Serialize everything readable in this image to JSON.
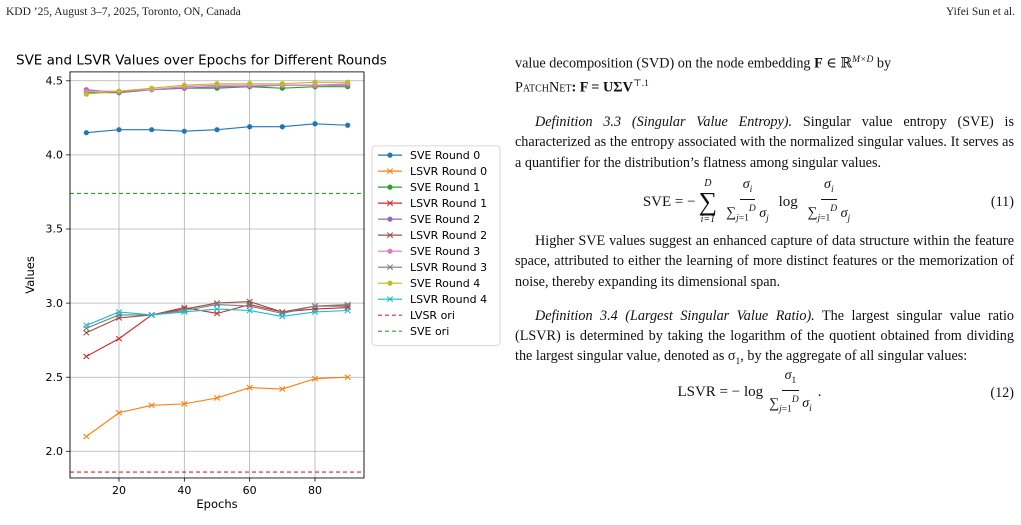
{
  "header": {
    "left": "KDD ’25, August 3–7, 2025, Toronto, ON, Canada",
    "right": "Yifei Sun et al."
  },
  "chart_data": {
    "type": "line",
    "title": "SVE and LSVR Values over Epochs for Different Rounds",
    "xlabel": "Epochs",
    "ylabel": "Values",
    "xlim": [
      5,
      95
    ],
    "ylim": [
      1.82,
      4.56
    ],
    "xticks": [
      "20",
      "40",
      "60",
      "80"
    ],
    "yticks": [
      "2.0",
      "2.5",
      "3.0",
      "3.5",
      "4.0",
      "4.5"
    ],
    "grid": true,
    "legend_position": "outside-right",
    "x": [
      10,
      20,
      30,
      40,
      50,
      60,
      70,
      80,
      90
    ],
    "series": [
      {
        "name": "SVE Round 0",
        "color": "#1f77b4",
        "marker": "circle",
        "values": [
          4.15,
          4.17,
          4.17,
          4.16,
          4.17,
          4.19,
          4.19,
          4.21,
          4.2
        ]
      },
      {
        "name": "LSVR Round 0",
        "color": "#ff7f0e",
        "marker": "x",
        "values": [
          2.1,
          2.26,
          2.31,
          2.32,
          2.36,
          2.43,
          2.42,
          2.49,
          2.5
        ]
      },
      {
        "name": "SVE Round 1",
        "color": "#2ca02c",
        "marker": "circle",
        "values": [
          4.42,
          4.42,
          4.44,
          4.45,
          4.45,
          4.46,
          4.45,
          4.46,
          4.46
        ]
      },
      {
        "name": "LSVR Round 1",
        "color": "#d62728",
        "marker": "x",
        "values": [
          2.64,
          2.76,
          2.92,
          2.97,
          2.93,
          2.99,
          2.94,
          2.96,
          2.97
        ]
      },
      {
        "name": "SVE Round 2",
        "color": "#9467bd",
        "marker": "circle",
        "values": [
          4.44,
          4.42,
          4.44,
          4.45,
          4.46,
          4.46,
          4.47,
          4.47,
          4.47
        ]
      },
      {
        "name": "LSVR Round 2",
        "color": "#8c564b",
        "marker": "x",
        "values": [
          2.8,
          2.9,
          2.92,
          2.96,
          3.0,
          3.01,
          2.94,
          2.98,
          2.98
        ]
      },
      {
        "name": "SVE Round 3",
        "color": "#e377c2",
        "marker": "circle",
        "values": [
          4.43,
          4.43,
          4.44,
          4.46,
          4.47,
          4.47,
          4.47,
          4.47,
          4.48
        ]
      },
      {
        "name": "LSVR Round 3",
        "color": "#7f7f7f",
        "marker": "x",
        "values": [
          2.83,
          2.92,
          2.92,
          2.95,
          2.99,
          2.98,
          2.93,
          2.98,
          2.99
        ]
      },
      {
        "name": "SVE Round 4",
        "color": "#bcbd22",
        "marker": "circle",
        "values": [
          4.41,
          4.43,
          4.45,
          4.47,
          4.48,
          4.48,
          4.48,
          4.49,
          4.49
        ]
      },
      {
        "name": "LSVR Round 4",
        "color": "#17becf",
        "marker": "x",
        "values": [
          2.85,
          2.94,
          2.92,
          2.94,
          2.96,
          2.95,
          2.91,
          2.94,
          2.95
        ]
      }
    ],
    "reference_lines": [
      {
        "name": "LVSR ori",
        "color": "#d62728",
        "style": "dashed",
        "value": 1.86
      },
      {
        "name": "SVE ori",
        "color": "#2ca02c",
        "style": "dashed",
        "value": 3.74
      }
    ]
  },
  "text": {
    "p0_a": "value decomposition (SVD) on the node embedding ",
    "p0_F": "F",
    "p0_in": " ∈ ℝ",
    "p0_sup": "M×D",
    "p0_by": " by",
    "p0_patchnet": "PatchNet",
    "p0_eq": ": F = UΣV",
    "p0_T": "⊤",
    "p0_fn": ".1",
    "def33_title": "Definition 3.3 (Singular Value Entropy).",
    "def33_body": " Singular value entropy (SVE) is characterized as the entropy associated with the normalized singular values. It serves as a quantifier for the distribution’s flatness among singular values.",
    "eq11_lhs": "SVE = −",
    "eq11_num": "(11)",
    "p_higher": "Higher SVE values suggest an enhanced capture of data structure within the feature space, attributed to either the learning of more distinct features or the memorization of noise, thereby expanding its dimensional span.",
    "def34_title": "Definition 3.4 (Largest Singular Value Ratio).",
    "def34_body": " The largest singular value ratio (LSVR) is determined by taking the logarithm of the quotient obtained from dividing the largest singular value, denoted as σ",
    "def34_sub": "1",
    "def34_tail": ", by the aggregate of all singular values:",
    "eq12_lhs": "LSVR = − log",
    "eq12_num": "(12)"
  }
}
